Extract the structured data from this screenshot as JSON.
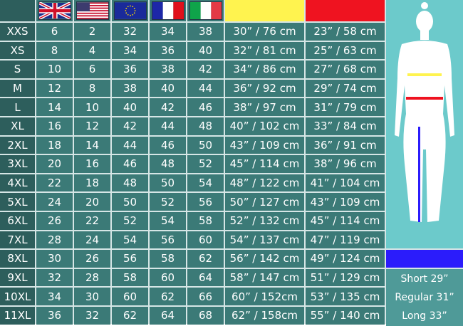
{
  "headers": {
    "flags": [
      "uk-flag",
      "us-flag",
      "eu-flag",
      "fr-flag",
      "it-flag"
    ],
    "measure_colors": {
      "chest": "#fff34f",
      "waist": "#ef1320",
      "inseam": "#2b1cfb"
    }
  },
  "rows": [
    [
      "XXS",
      "6",
      "2",
      "32",
      "34",
      "38",
      "30” / 76 cm",
      "23” / 58 cm"
    ],
    [
      "XS",
      "8",
      "4",
      "34",
      "36",
      "40",
      "32” / 81 cm",
      "25” / 63 cm"
    ],
    [
      "S",
      "10",
      "6",
      "36",
      "38",
      "42",
      "34” / 86 cm",
      "27” / 68 cm"
    ],
    [
      "M",
      "12",
      "8",
      "38",
      "40",
      "44",
      "36” / 92 cm",
      "29” / 74 cm"
    ],
    [
      "L",
      "14",
      "10",
      "40",
      "42",
      "46",
      "38” / 97 cm",
      "31” / 79 cm"
    ],
    [
      "XL",
      "16",
      "12",
      "42",
      "44",
      "48",
      "40” / 102 cm",
      "33” / 84 cm"
    ],
    [
      "2XL",
      "18",
      "14",
      "44",
      "46",
      "50",
      "43” / 109 cm",
      "36” / 91 cm"
    ],
    [
      "3XL",
      "20",
      "16",
      "46",
      "48",
      "52",
      "45” / 114 cm",
      "38” / 96 cm"
    ],
    [
      "4XL",
      "22",
      "18",
      "48",
      "50",
      "54",
      "48” / 122 cm",
      "41” / 104 cm"
    ],
    [
      "5XL",
      "24",
      "20",
      "50",
      "52",
      "56",
      "50” / 127 cm",
      "43” / 109 cm"
    ],
    [
      "6XL",
      "26",
      "22",
      "52",
      "54",
      "58",
      "52” / 132 cm",
      "45” / 114 cm"
    ],
    [
      "7XL",
      "28",
      "24",
      "54",
      "56",
      "60",
      "54” / 137 cm",
      "47” / 119 cm"
    ],
    [
      "8XL",
      "30",
      "26",
      "56",
      "58",
      "62",
      "56” / 142 cm",
      "49” / 124 cm"
    ],
    [
      "9XL",
      "32",
      "28",
      "58",
      "60",
      "64",
      "58” / 147 cm",
      "51” / 129 cm"
    ],
    [
      "10XL",
      "34",
      "30",
      "60",
      "62",
      "66",
      "60” / 152cm",
      "53” / 135 cm"
    ],
    [
      "11XL",
      "36",
      "32",
      "62",
      "64",
      "68",
      "62” / 158cm",
      "55” / 140 cm"
    ]
  ],
  "inseam": [
    "Short 29”",
    "Regular 31”",
    "Long 33”"
  ]
}
